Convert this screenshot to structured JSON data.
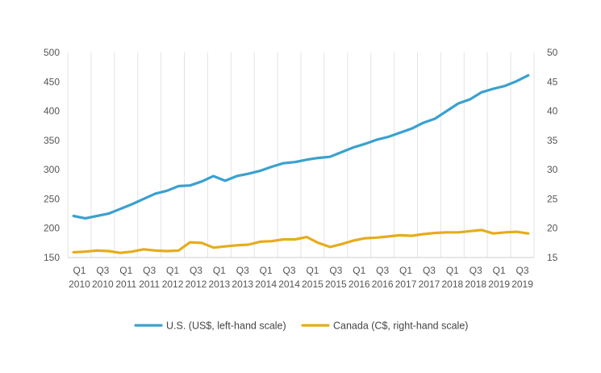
{
  "chart_data": {
    "type": "line",
    "title": "",
    "xlabel": "",
    "ylabel": "",
    "grid": "vertical-only",
    "legend_position": "bottom",
    "x_ticks": [
      [
        "Q1",
        "2010"
      ],
      [
        "Q3",
        "2010"
      ],
      [
        "Q1",
        "2011"
      ],
      [
        "Q3",
        "2011"
      ],
      [
        "Q1",
        "2012"
      ],
      [
        "Q3",
        "2012"
      ],
      [
        "Q1",
        "2013"
      ],
      [
        "Q3",
        "2013"
      ],
      [
        "Q1",
        "2014"
      ],
      [
        "Q3",
        "2014"
      ],
      [
        "Q1",
        "2015"
      ],
      [
        "Q3",
        "2015"
      ],
      [
        "Q1",
        "2016"
      ],
      [
        "Q3",
        "2016"
      ],
      [
        "Q1",
        "2017"
      ],
      [
        "Q3",
        "2017"
      ],
      [
        "Q1",
        "2018"
      ],
      [
        "Q3",
        "2018"
      ],
      [
        "Q1",
        "2019"
      ],
      [
        "Q3",
        "2019"
      ]
    ],
    "y_left": {
      "ylim": [
        150,
        500
      ],
      "ticks": [
        150,
        200,
        250,
        300,
        350,
        400,
        450,
        500
      ]
    },
    "y_right": {
      "ylim": [
        15,
        50
      ],
      "ticks": [
        15,
        20,
        25,
        30,
        35,
        40,
        45,
        50
      ]
    },
    "series": [
      {
        "name": "U.S. (US$, left-hand scale)",
        "axis": "left",
        "color": "#3aa1cf",
        "values": [
          221,
          217,
          221,
          225,
          233,
          241,
          250,
          259,
          264,
          272,
          273,
          280,
          289,
          281,
          289,
          293,
          298,
          305,
          311,
          313,
          317,
          320,
          322,
          330,
          338,
          344,
          351,
          356,
          363,
          370,
          380,
          387,
          400,
          413,
          420,
          432,
          438,
          443,
          451,
          461
        ]
      },
      {
        "name": "Canada (C$, right-hand scale)",
        "axis": "right",
        "color": "#e6ac1b",
        "values": [
          15.9,
          16.0,
          16.2,
          16.1,
          15.8,
          16.0,
          16.4,
          16.2,
          16.1,
          16.2,
          17.6,
          17.5,
          16.7,
          16.9,
          17.1,
          17.2,
          17.7,
          17.8,
          18.1,
          18.1,
          18.5,
          17.5,
          16.8,
          17.3,
          17.9,
          18.3,
          18.4,
          18.6,
          18.8,
          18.7,
          19.0,
          19.2,
          19.3,
          19.3,
          19.5,
          19.7,
          19.1,
          19.3,
          19.4,
          19.1
        ]
      }
    ]
  }
}
